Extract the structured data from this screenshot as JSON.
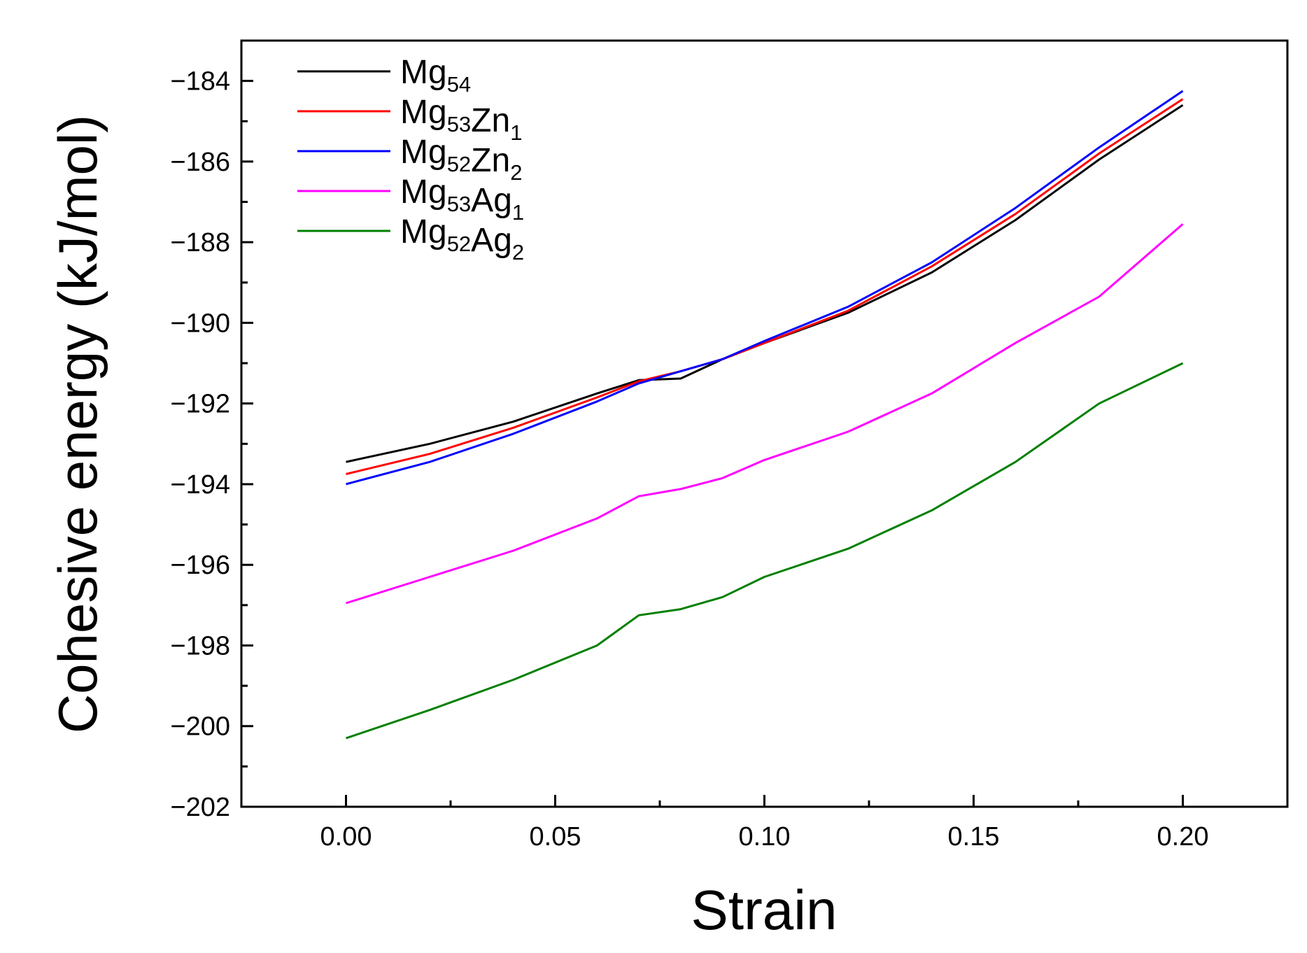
{
  "chart_data": {
    "type": "line",
    "title": "",
    "xlabel": "Strain",
    "ylabel": "Cohesive energy (kJ/mol)",
    "xlim": [
      -0.025,
      0.225
    ],
    "ylim": [
      -202,
      -183
    ],
    "x_ticks": [
      0.0,
      0.05,
      0.1,
      0.15,
      0.2
    ],
    "x_tick_labels": [
      "0.00",
      "0.05",
      "0.10",
      "0.15",
      "0.20"
    ],
    "y_ticks": [
      -202,
      -200,
      -198,
      -196,
      -194,
      -192,
      -190,
      -188,
      -186,
      -184
    ],
    "y_tick_labels": [
      "−202",
      "−200",
      "−198",
      "−196",
      "−194",
      "−192",
      "−190",
      "−188",
      "−186",
      "−184"
    ],
    "grid": false,
    "legend_position": "top-left",
    "series": [
      {
        "name": "Mg54",
        "label_base": "Mg",
        "label_parts": [
          {
            "text": "Mg",
            "sub": "54"
          }
        ],
        "color": "#000000",
        "x": [
          0.0,
          0.02,
          0.04,
          0.06,
          0.07,
          0.08,
          0.09,
          0.1,
          0.12,
          0.14,
          0.16,
          0.18,
          0.2
        ],
        "values": [
          -193.45,
          -193.0,
          -192.45,
          -191.75,
          -191.42,
          -191.38,
          -190.9,
          -190.5,
          -189.75,
          -188.75,
          -187.45,
          -185.95,
          -184.6
        ]
      },
      {
        "name": "Mg53Zn1",
        "label_parts": [
          {
            "text": "Mg",
            "sub": "53"
          },
          {
            "text": "Zn",
            "sub": "1"
          }
        ],
        "color": "#ff0000",
        "x": [
          0.0,
          0.02,
          0.04,
          0.06,
          0.07,
          0.08,
          0.09,
          0.1,
          0.12,
          0.14,
          0.16,
          0.18,
          0.2
        ],
        "values": [
          -193.75,
          -193.25,
          -192.6,
          -191.85,
          -191.45,
          -191.2,
          -190.9,
          -190.5,
          -189.7,
          -188.6,
          -187.3,
          -185.8,
          -184.45
        ]
      },
      {
        "name": "Mg52Zn2",
        "label_parts": [
          {
            "text": "Mg",
            "sub": "52"
          },
          {
            "text": "Zn",
            "sub": "2"
          }
        ],
        "color": "#0000ff",
        "x": [
          0.0,
          0.02,
          0.04,
          0.06,
          0.07,
          0.08,
          0.09,
          0.1,
          0.12,
          0.14,
          0.16,
          0.18,
          0.2
        ],
        "values": [
          -194.0,
          -193.45,
          -192.75,
          -191.95,
          -191.5,
          -191.2,
          -190.9,
          -190.45,
          -189.6,
          -188.5,
          -187.15,
          -185.65,
          -184.25
        ]
      },
      {
        "name": "Mg53Ag1",
        "label_parts": [
          {
            "text": "Mg",
            "sub": "53"
          },
          {
            "text": "Ag",
            "sub": "1"
          }
        ],
        "color": "#ff00ff",
        "x": [
          0.0,
          0.02,
          0.04,
          0.06,
          0.07,
          0.08,
          0.09,
          0.1,
          0.12,
          0.14,
          0.16,
          0.18,
          0.2
        ],
        "values": [
          -196.95,
          -196.3,
          -195.65,
          -194.85,
          -194.3,
          -194.12,
          -193.85,
          -193.4,
          -192.7,
          -191.75,
          -190.5,
          -189.35,
          -187.55
        ]
      },
      {
        "name": "Mg52Ag2",
        "label_parts": [
          {
            "text": "Mg",
            "sub": "52"
          },
          {
            "text": "Ag",
            "sub": "2"
          }
        ],
        "color": "#008000",
        "x": [
          0.0,
          0.02,
          0.04,
          0.06,
          0.07,
          0.08,
          0.09,
          0.1,
          0.12,
          0.14,
          0.16,
          0.18,
          0.2
        ],
        "values": [
          -200.3,
          -199.6,
          -198.85,
          -198.0,
          -197.25,
          -197.1,
          -196.8,
          -196.3,
          -195.6,
          -194.65,
          -193.45,
          -192.0,
          -191.0
        ]
      }
    ]
  }
}
